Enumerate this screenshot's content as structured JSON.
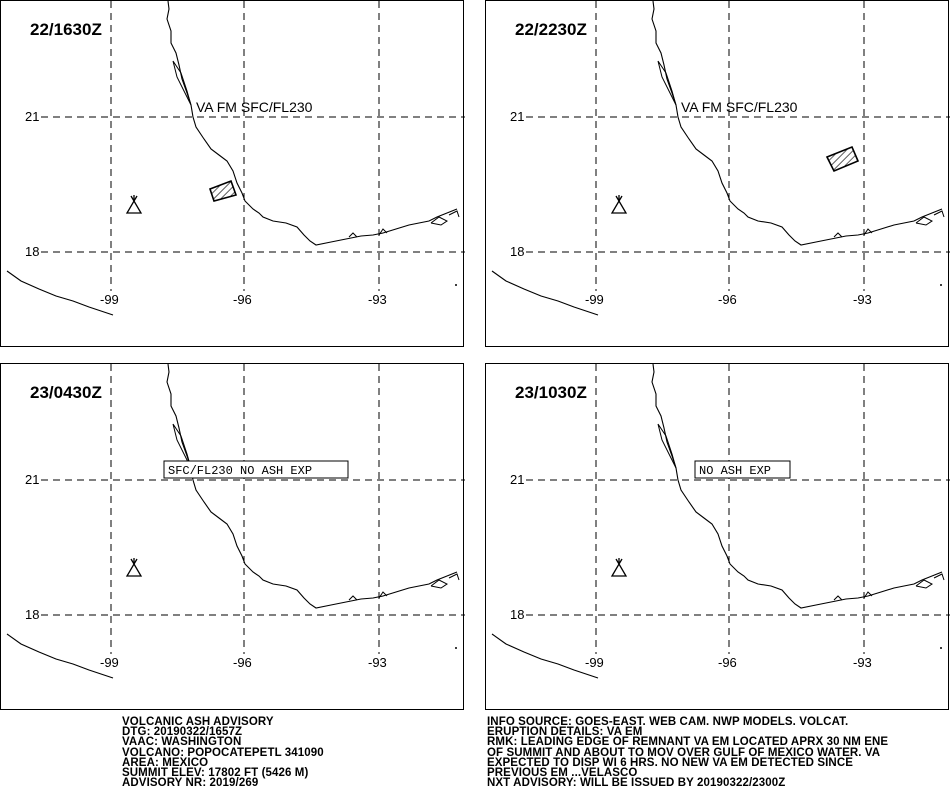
{
  "panels": [
    {
      "time": "22/1630Z",
      "label": "VA FM SFC/FL230",
      "label_boxed": false,
      "ash": "shifted_a"
    },
    {
      "time": "22/2230Z",
      "label": "VA FM SFC/FL230",
      "label_boxed": false,
      "ash": "shifted_b"
    },
    {
      "time": "23/0430Z",
      "label": "SFC/FL230 NO ASH EXP",
      "label_boxed": true,
      "ash": null
    },
    {
      "time": "23/1030Z",
      "label": "NO ASH EXP",
      "label_boxed": true,
      "ash": null
    }
  ],
  "axes": {
    "lat_labels": [
      "21",
      "18"
    ],
    "lon_labels": [
      "-99",
      "-96",
      "-93"
    ]
  },
  "volcano_icon": "volcano-icon",
  "advisory_left": [
    "VOLCANIC ASH ADVISORY",
    "DTG: 20190322/1657Z",
    "VAAC: WASHINGTON",
    "VOLCANO: POPOCATEPETL 341090",
    "AREA: MEXICO",
    "SUMMIT ELEV: 17802 FT (5426 M)",
    "ADVISORY NR: 2019/269"
  ],
  "advisory_right": [
    "INFO SOURCE: GOES-EAST. WEB CAM. NWP MODELS. VOLCAT.",
    "ERUPTION DETAILS: VA EM",
    "RMK: LEADING EDGE OF REMNANT VA EM LOCATED APRX 30 NM ENE",
    "OF SUMMIT AND ABOUT TO MOV OVER GULF OF MEXICO WATER. VA",
    "EXPECTED TO DISP WI 6 HRS. NO NEW VA EM DETECTED SINCE",
    "PREVIOUS EM ...VELASCO",
    "NXT ADVISORY: WILL BE ISSUED BY 20190322/2300Z"
  ]
}
